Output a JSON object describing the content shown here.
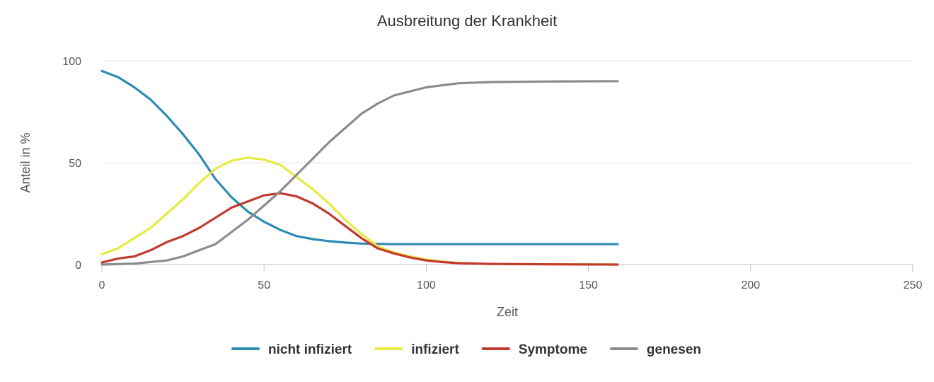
{
  "chart_data": {
    "type": "line",
    "title": "Ausbreitung der Krankheit",
    "xlabel": "Zeit",
    "ylabel": "Anteil in %",
    "xlim": [
      0,
      250
    ],
    "ylim": [
      0,
      100
    ],
    "x_ticks": [
      0,
      50,
      100,
      150,
      200,
      250
    ],
    "y_ticks": [
      0,
      50,
      100
    ],
    "grid": "horizontal",
    "legend_position": "bottom",
    "series": [
      {
        "name": "nicht infiziert",
        "color": "#2f8bb1",
        "points": [
          [
            0,
            95
          ],
          [
            5,
            92
          ],
          [
            10,
            87
          ],
          [
            15,
            81
          ],
          [
            20,
            73
          ],
          [
            25,
            64
          ],
          [
            30,
            54
          ],
          [
            35,
            42
          ],
          [
            40,
            33
          ],
          [
            45,
            26
          ],
          [
            50,
            21
          ],
          [
            55,
            17
          ],
          [
            60,
            14
          ],
          [
            65,
            12.5
          ],
          [
            70,
            11.5
          ],
          [
            75,
            10.8
          ],
          [
            80,
            10.3
          ],
          [
            90,
            10
          ],
          [
            100,
            10
          ],
          [
            120,
            10
          ],
          [
            140,
            10
          ],
          [
            159,
            10
          ]
        ]
      },
      {
        "name": "infiziert",
        "color": "#e6eb3f",
        "points": [
          [
            0,
            5
          ],
          [
            5,
            8
          ],
          [
            10,
            13
          ],
          [
            15,
            18
          ],
          [
            20,
            25
          ],
          [
            25,
            32
          ],
          [
            30,
            40
          ],
          [
            35,
            47
          ],
          [
            40,
            51
          ],
          [
            45,
            52.5
          ],
          [
            50,
            51.5
          ],
          [
            55,
            49
          ],
          [
            60,
            43
          ],
          [
            65,
            37
          ],
          [
            70,
            30
          ],
          [
            75,
            22
          ],
          [
            80,
            15
          ],
          [
            85,
            9
          ],
          [
            90,
            6
          ],
          [
            95,
            4
          ],
          [
            100,
            2.5
          ],
          [
            105,
            1.5
          ],
          [
            110,
            0.8
          ],
          [
            120,
            0.3
          ],
          [
            140,
            0.1
          ],
          [
            159,
            0
          ]
        ]
      },
      {
        "name": "Symptome",
        "color": "#c23a2f",
        "points": [
          [
            0,
            1
          ],
          [
            5,
            3
          ],
          [
            10,
            4
          ],
          [
            15,
            7
          ],
          [
            20,
            11
          ],
          [
            25,
            14
          ],
          [
            30,
            18
          ],
          [
            35,
            23
          ],
          [
            40,
            28
          ],
          [
            45,
            31
          ],
          [
            50,
            34
          ],
          [
            55,
            35
          ],
          [
            60,
            33.5
          ],
          [
            65,
            30
          ],
          [
            70,
            25
          ],
          [
            75,
            19
          ],
          [
            80,
            13
          ],
          [
            85,
            8
          ],
          [
            90,
            5.5
          ],
          [
            95,
            3.5
          ],
          [
            100,
            2
          ],
          [
            105,
            1.2
          ],
          [
            110,
            0.7
          ],
          [
            120,
            0.3
          ],
          [
            140,
            0.1
          ],
          [
            159,
            0
          ]
        ]
      },
      {
        "name": "genesen",
        "color": "#8c8c8c",
        "points": [
          [
            0,
            0
          ],
          [
            10,
            0.5
          ],
          [
            20,
            2
          ],
          [
            25,
            4
          ],
          [
            30,
            7
          ],
          [
            35,
            10
          ],
          [
            40,
            16
          ],
          [
            45,
            22
          ],
          [
            50,
            29
          ],
          [
            55,
            36
          ],
          [
            60,
            44
          ],
          [
            65,
            52
          ],
          [
            70,
            60
          ],
          [
            75,
            67
          ],
          [
            80,
            74
          ],
          [
            85,
            79
          ],
          [
            90,
            83
          ],
          [
            95,
            85
          ],
          [
            100,
            87
          ],
          [
            110,
            89
          ],
          [
            120,
            89.6
          ],
          [
            140,
            89.9
          ],
          [
            159,
            90
          ]
        ]
      }
    ]
  }
}
